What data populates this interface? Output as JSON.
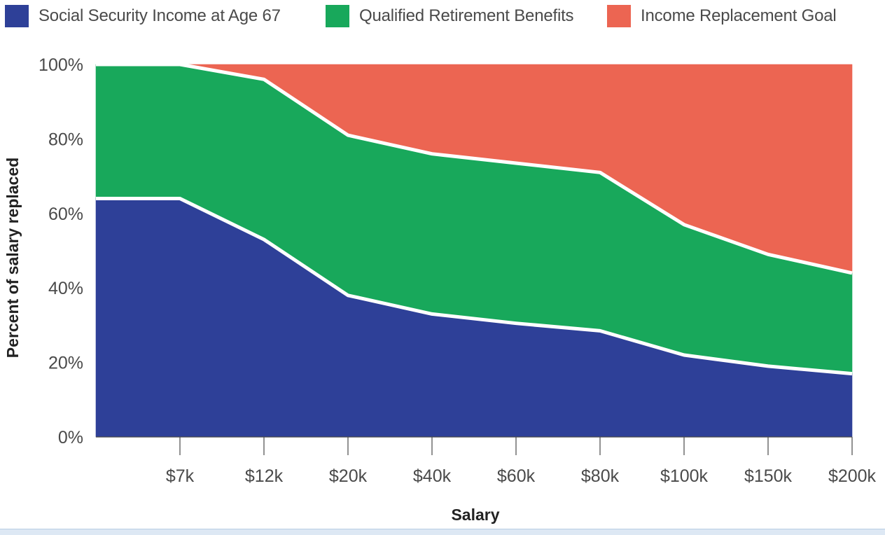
{
  "chart_data": {
    "type": "area",
    "stacked": true,
    "categories": [
      "",
      "$7k",
      "$12k",
      "$20k",
      "$40k",
      "$60k",
      "$80k",
      "$100k",
      "$150k",
      "$200k"
    ],
    "series": [
      {
        "name": "Social Security Income at Age 67",
        "color": "#2e4098",
        "values": [
          64,
          64,
          53,
          38,
          33,
          30.5,
          28.5,
          22,
          19,
          17
        ]
      },
      {
        "name": "Qualified Retirement Benefits",
        "color": "#18a85b",
        "values": [
          36,
          36,
          43,
          43,
          43,
          43,
          42.5,
          35,
          30,
          27
        ]
      },
      {
        "name": "Income Replacement Goal",
        "color": "#ec6552",
        "values": [
          0,
          0,
          4,
          19,
          24,
          26.5,
          29,
          43,
          51,
          56
        ]
      }
    ],
    "ylabel": "Percent of salary replaced",
    "xlabel": "Salary",
    "ylim": [
      0,
      100
    ],
    "yticks": [
      "0%",
      "20%",
      "40%",
      "60%",
      "80%",
      "100%"
    ],
    "grid": false,
    "legend": "top"
  }
}
